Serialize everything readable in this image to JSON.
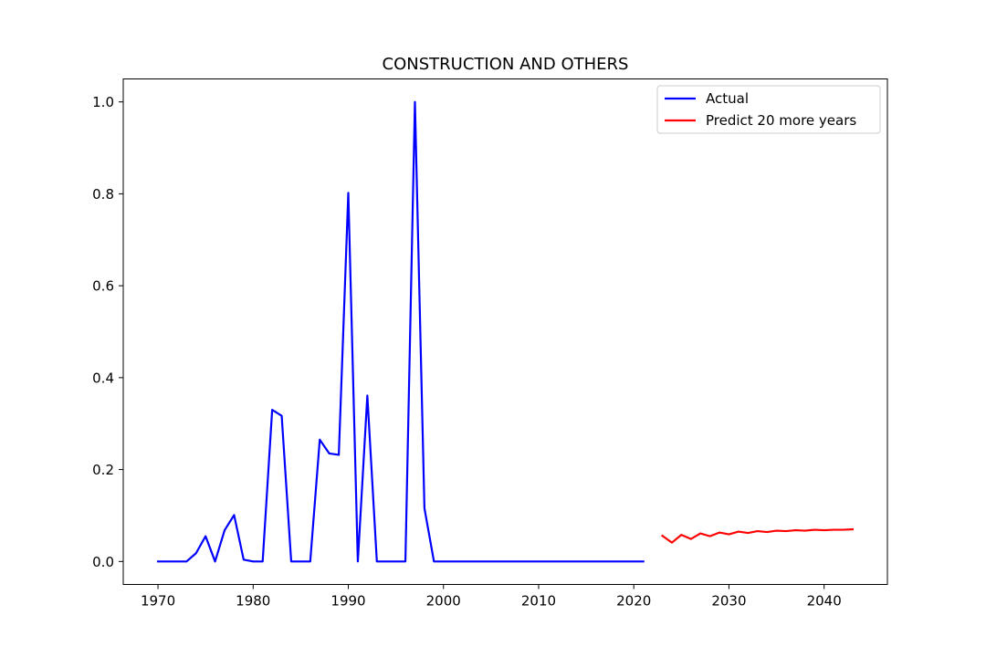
{
  "chart_data": {
    "type": "line",
    "title": "CONSTRUCTION AND OTHERS",
    "xlabel": "",
    "ylabel": "",
    "xlim": [
      1966.35,
      2046.65
    ],
    "ylim": [
      -0.05,
      1.05
    ],
    "x_ticks": [
      1970,
      1980,
      1990,
      2000,
      2010,
      2020,
      2030,
      2040
    ],
    "y_ticks": [
      0.0,
      0.2,
      0.4,
      0.6,
      0.8,
      1.0
    ],
    "y_tick_labels": [
      "0.0",
      "0.2",
      "0.4",
      "0.6",
      "0.8",
      "1.0"
    ],
    "grid": false,
    "legend_position": "top-right",
    "series": [
      {
        "name": "Actual",
        "color": "#0000ff",
        "x": [
          1970,
          1971,
          1972,
          1973,
          1974,
          1975,
          1976,
          1977,
          1978,
          1979,
          1980,
          1981,
          1982,
          1983,
          1984,
          1985,
          1986,
          1987,
          1988,
          1989,
          1990,
          1991,
          1992,
          1993,
          1994,
          1995,
          1996,
          1997,
          1998,
          1999,
          2000,
          2001,
          2002,
          2003,
          2004,
          2005,
          2006,
          2007,
          2008,
          2009,
          2010,
          2011,
          2012,
          2013,
          2014,
          2015,
          2016,
          2017,
          2018,
          2019,
          2020,
          2021
        ],
        "y": [
          0,
          0,
          0,
          0,
          0.018,
          0.055,
          0,
          0.068,
          0.101,
          0.004,
          0,
          0,
          0.33,
          0.317,
          0,
          0,
          0,
          0.265,
          0.235,
          0.232,
          0.802,
          0,
          0.361,
          0,
          0,
          0,
          0,
          1.0,
          0.116,
          0,
          0,
          0,
          0,
          0,
          0,
          0,
          0,
          0,
          0,
          0,
          0,
          0,
          0,
          0,
          0,
          0,
          0,
          0,
          0,
          0,
          0,
          0
        ]
      },
      {
        "name": "Predict 20 more years",
        "color": "#ff0000",
        "x": [
          2023,
          2024,
          2025,
          2026,
          2027,
          2028,
          2029,
          2030,
          2031,
          2032,
          2033,
          2034,
          2035,
          2036,
          2037,
          2038,
          2039,
          2040,
          2041,
          2042,
          2043
        ],
        "y": [
          0.056,
          0.041,
          0.058,
          0.049,
          0.061,
          0.055,
          0.063,
          0.059,
          0.065,
          0.062,
          0.066,
          0.064,
          0.067,
          0.066,
          0.068,
          0.067,
          0.069,
          0.068,
          0.069,
          0.069,
          0.07
        ]
      }
    ]
  }
}
